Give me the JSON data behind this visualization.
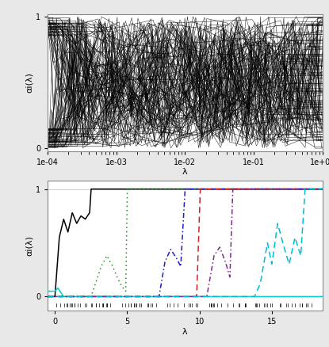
{
  "upper_xrange_log": [
    -4,
    0
  ],
  "upper_ylim": [
    -0.02,
    1.02
  ],
  "upper_yticks": [
    0,
    1
  ],
  "upper_ylabel": "αi(λ)",
  "upper_xlabel": "λ",
  "upper_n_lines": 120,
  "lower_xlim": [
    -0.5,
    18.5
  ],
  "lower_ylim": [
    -0.13,
    1.08
  ],
  "lower_yticks": [
    0,
    1
  ],
  "lower_ylabel": "αi(λ)",
  "lower_xlabel": "λ",
  "lower_xticks": [
    0,
    5,
    10,
    15
  ],
  "lines": [
    {
      "color": "#000000",
      "style": "solid",
      "knots": [
        0.0,
        0.3,
        0.6,
        0.9,
        1.2,
        1.5,
        1.8,
        2.1,
        2.4,
        2.5,
        18.5
      ],
      "vals": [
        0.0,
        0.55,
        0.72,
        0.6,
        0.78,
        0.68,
        0.75,
        0.72,
        0.78,
        1.0,
        1.0
      ]
    },
    {
      "color": "#00ced1",
      "style": "solid",
      "knots": [
        0.0,
        0.2,
        0.4,
        0.6,
        18.5
      ],
      "vals": [
        0.05,
        0.08,
        0.04,
        0.0,
        0.0
      ]
    },
    {
      "color": "#228b22",
      "style": "dotted",
      "knots": [
        0.0,
        2.5,
        2.8,
        3.2,
        3.6,
        4.0,
        4.3,
        4.6,
        4.9,
        5.0,
        18.5
      ],
      "vals": [
        0.0,
        0.0,
        0.12,
        0.28,
        0.38,
        0.28,
        0.18,
        0.1,
        0.05,
        1.0,
        1.0
      ]
    },
    {
      "color": "#1c1ccc",
      "style": "dashdot",
      "knots": [
        0.0,
        7.2,
        7.6,
        8.0,
        8.4,
        8.7,
        9.0,
        18.5
      ],
      "vals": [
        0.0,
        0.0,
        0.32,
        0.44,
        0.36,
        0.28,
        1.0,
        1.0
      ]
    },
    {
      "color": "#cc2222",
      "style": "dashed",
      "knots": [
        0.0,
        9.5,
        9.6,
        9.8,
        10.05,
        18.5
      ],
      "vals": [
        0.0,
        0.0,
        0.0,
        0.0,
        1.0,
        1.0
      ]
    },
    {
      "color": "#7b2d8b",
      "style": "dashdot",
      "knots": [
        0.0,
        10.5,
        11.0,
        11.4,
        11.8,
        12.1,
        12.3,
        18.5
      ],
      "vals": [
        0.0,
        0.0,
        0.38,
        0.46,
        0.32,
        0.18,
        1.0,
        1.0
      ]
    },
    {
      "color": "#00bcd4",
      "style": "dashed",
      "knots": [
        0.0,
        13.8,
        14.2,
        14.7,
        15.0,
        15.4,
        15.8,
        16.2,
        16.6,
        17.0,
        17.3,
        18.5
      ],
      "vals": [
        0.0,
        0.0,
        0.12,
        0.5,
        0.3,
        0.68,
        0.48,
        0.3,
        0.55,
        0.38,
        1.0,
        1.0
      ]
    }
  ],
  "bg_color": "#e8e8e8",
  "plot_bg": "#ffffff",
  "tick_fontsize": 7,
  "label_fontsize": 8,
  "axis_color": "#888888"
}
